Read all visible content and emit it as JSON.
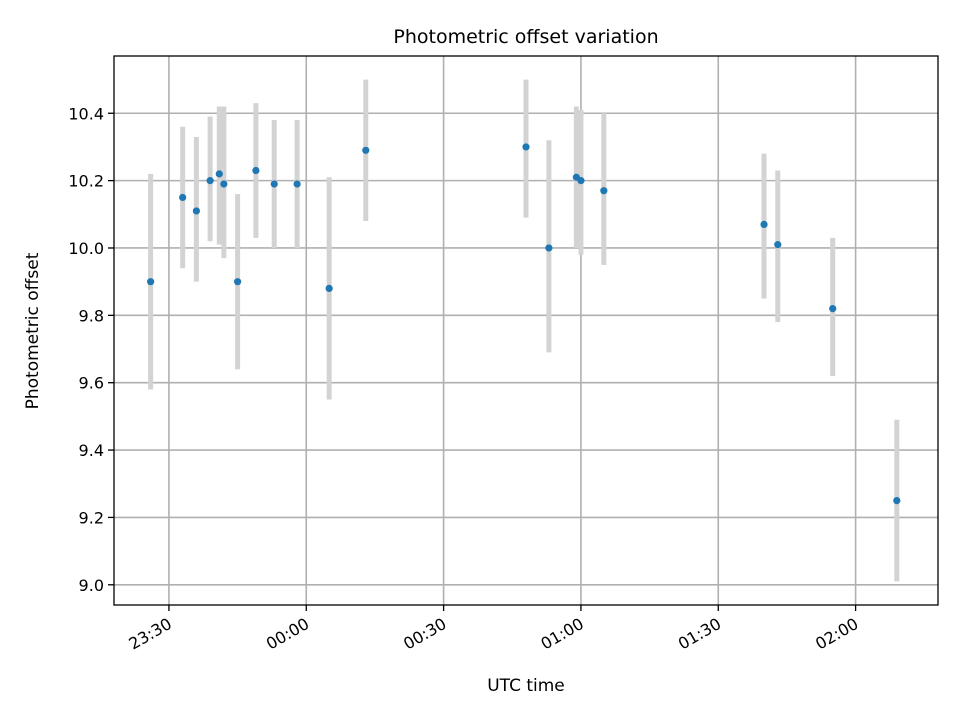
{
  "chart_data": {
    "type": "scatter",
    "title": "Photometric offset variation",
    "xlabel": "UTC time",
    "ylabel": "Photometric offset",
    "x_ticks": [
      "23:30",
      "00:00",
      "00:30",
      "01:00",
      "01:30",
      "02:00"
    ],
    "y_ticks": [
      "9.0",
      "9.2",
      "9.4",
      "9.6",
      "9.8",
      "10.0",
      "10.2",
      "10.4"
    ],
    "xlim": [
      "23:18",
      "02:18"
    ],
    "ylim": [
      8.94,
      10.57
    ],
    "grid": true,
    "points": [
      {
        "x": "23:26",
        "y": 9.9,
        "yerr": [
          9.58,
          10.22
        ]
      },
      {
        "x": "23:33",
        "y": 10.15,
        "yerr": [
          9.94,
          10.36
        ]
      },
      {
        "x": "23:36",
        "y": 10.11,
        "yerr": [
          9.9,
          10.33
        ]
      },
      {
        "x": "23:39",
        "y": 10.2,
        "yerr": [
          10.02,
          10.39
        ]
      },
      {
        "x": "23:41",
        "y": 10.22,
        "yerr": [
          10.01,
          10.42
        ]
      },
      {
        "x": "23:42",
        "y": 10.19,
        "yerr": [
          9.97,
          10.42
        ]
      },
      {
        "x": "23:45",
        "y": 9.9,
        "yerr": [
          9.64,
          10.16
        ]
      },
      {
        "x": "23:49",
        "y": 10.23,
        "yerr": [
          10.03,
          10.43
        ]
      },
      {
        "x": "23:53",
        "y": 10.19,
        "yerr": [
          10.0,
          10.38
        ]
      },
      {
        "x": "23:58",
        "y": 10.19,
        "yerr": [
          10.0,
          10.38
        ]
      },
      {
        "x": "00:05",
        "y": 9.88,
        "yerr": [
          9.55,
          10.21
        ]
      },
      {
        "x": "00:13",
        "y": 10.29,
        "yerr": [
          10.08,
          10.5
        ]
      },
      {
        "x": "00:48",
        "y": 10.3,
        "yerr": [
          10.09,
          10.5
        ]
      },
      {
        "x": "00:53",
        "y": 10.0,
        "yerr": [
          9.69,
          10.32
        ]
      },
      {
        "x": "00:59",
        "y": 10.21,
        "yerr": [
          10.0,
          10.42
        ]
      },
      {
        "x": "01:00",
        "y": 10.2,
        "yerr": [
          9.98,
          10.41
        ]
      },
      {
        "x": "01:05",
        "y": 10.17,
        "yerr": [
          9.95,
          10.4
        ]
      },
      {
        "x": "01:40",
        "y": 10.07,
        "yerr": [
          9.85,
          10.28
        ]
      },
      {
        "x": "01:43",
        "y": 10.01,
        "yerr": [
          9.78,
          10.23
        ]
      },
      {
        "x": "01:55",
        "y": 9.82,
        "yerr": [
          9.62,
          10.03
        ]
      },
      {
        "x": "02:09",
        "y": 9.25,
        "yerr": [
          9.01,
          9.49
        ]
      }
    ],
    "colors": {
      "marker": "#1f77b4",
      "errorbar": "#d3d3d3",
      "grid": "#b0b0b0"
    }
  }
}
